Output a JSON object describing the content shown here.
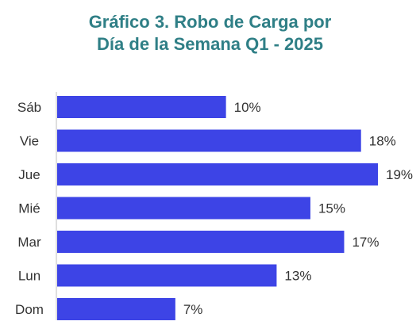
{
  "title_line1": "Gráfico 3. Robo de Carga por",
  "title_line2": "Día de la Semana Q1 - 2025",
  "colors": {
    "title": "#2f7f86",
    "bar": "#3d44e6",
    "text": "#333333"
  },
  "chart_data": {
    "type": "bar",
    "orientation": "horizontal",
    "title": "Gráfico 3. Robo de Carga por Día de la Semana Q1 - 2025",
    "categories": [
      "Sáb",
      "Vie",
      "Jue",
      "Mié",
      "Mar",
      "Lun",
      "Dom"
    ],
    "values": [
      10,
      18,
      19,
      15,
      17,
      13,
      7
    ],
    "value_labels": [
      "10%",
      "18%",
      "19%",
      "15%",
      "17%",
      "13%",
      "7%"
    ],
    "xlabel": "",
    "ylabel": "",
    "xlim": [
      0,
      19
    ],
    "grid": false,
    "legend": "none"
  }
}
